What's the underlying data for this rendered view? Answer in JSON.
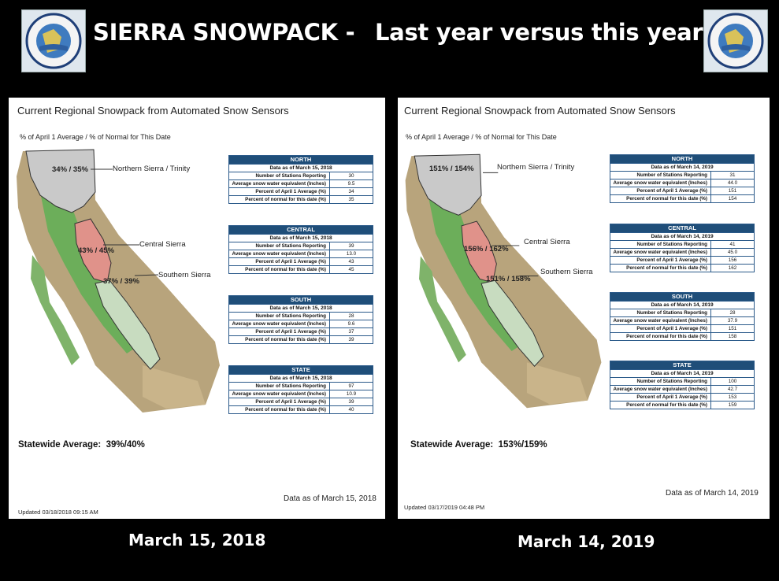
{
  "header": {
    "title_part1": "SIERRA SNOWPACK -",
    "title_part2": "Last year versus this year",
    "logo_text": "DEPARTMENT OF WATER RESOURCES · STATE OF CALIFORNIA"
  },
  "panels": [
    {
      "title": "Current Regional Snowpack from Automated Snow Sensors",
      "subtitle": "% of April 1 Average / % of Normal for This Date",
      "map_labels": {
        "north_value": "34% / 35%",
        "north_name": "Northern Sierra / Trinity",
        "central_value": "43% / 45%",
        "central_name": "Central Sierra",
        "south_value": "37% / 39%",
        "south_name": "Southern Sierra"
      },
      "tables": [
        {
          "region": "NORTH",
          "date": "Data as of March 15, 2018",
          "rows": [
            [
              "Number of Stations Reporting",
              "30"
            ],
            [
              "Average snow water equivalent (Inches)",
              "9.5"
            ],
            [
              "Percent of April 1 Average (%)",
              "34"
            ],
            [
              "Percent of normal for this date (%)",
              "35"
            ]
          ]
        },
        {
          "region": "CENTRAL",
          "date": "Data as of March 15, 2018",
          "rows": [
            [
              "Number of Stations Reporting",
              "39"
            ],
            [
              "Average snow water equivalent (Inches)",
              "13.0"
            ],
            [
              "Percent of April 1 Average (%)",
              "43"
            ],
            [
              "Percent of normal for this date (%)",
              "45"
            ]
          ]
        },
        {
          "region": "SOUTH",
          "date": "Data as of March 15, 2018",
          "rows": [
            [
              "Number of Stations Reporting",
              "28"
            ],
            [
              "Average snow water equivalent (Inches)",
              "9.6"
            ],
            [
              "Percent of April 1 Average (%)",
              "37"
            ],
            [
              "Percent of normal for this date (%)",
              "39"
            ]
          ]
        },
        {
          "region": "STATE",
          "date": "Data as of March 15, 2018",
          "rows": [
            [
              "Number of Stations Reporting",
              "97"
            ],
            [
              "Average snow water equivalent (Inches)",
              "10.9"
            ],
            [
              "Percent of April 1 Average (%)",
              "39"
            ],
            [
              "Percent of normal for this date (%)",
              "40"
            ]
          ]
        }
      ],
      "statewide": "Statewide Average:  39%/40%",
      "data_as_of": "Data as of March 15, 2018",
      "updated": "Updated 03/18/2018 09:15 AM",
      "caption": "March 15, 2018"
    },
    {
      "title": "Current Regional Snowpack from Automated Snow Sensors",
      "subtitle": "% of April 1 Average / % of Normal for This Date",
      "map_labels": {
        "north_value": "151% / 154%",
        "north_name": "Northern Sierra / Trinity",
        "central_value": "156% / 162%",
        "central_name": "Central Sierra",
        "south_value": "151% / 158%",
        "south_name": "Southern Sierra"
      },
      "tables": [
        {
          "region": "NORTH",
          "date": "Data as of March 14, 2019",
          "rows": [
            [
              "Number of Stations Reporting",
              "31"
            ],
            [
              "Average snow water equivalent (Inches)",
              "44.0"
            ],
            [
              "Percent of April 1 Average (%)",
              "151"
            ],
            [
              "Percent of normal for this date (%)",
              "154"
            ]
          ]
        },
        {
          "region": "CENTRAL",
          "date": "Data as of March 14, 2019",
          "rows": [
            [
              "Number of Stations Reporting",
              "41"
            ],
            [
              "Average snow water equivalent (Inches)",
              "45.0"
            ],
            [
              "Percent of April 1 Average (%)",
              "156"
            ],
            [
              "Percent of normal for this date (%)",
              "162"
            ]
          ]
        },
        {
          "region": "SOUTH",
          "date": "Data as of March 14, 2019",
          "rows": [
            [
              "Number of Stations Reporting",
              "28"
            ],
            [
              "Average snow water equivalent (Inches)",
              "37.9"
            ],
            [
              "Percent of April 1 Average (%)",
              "151"
            ],
            [
              "Percent of normal for this date (%)",
              "158"
            ]
          ]
        },
        {
          "region": "STATE",
          "date": "Data as of March 14, 2019",
          "rows": [
            [
              "Number of Stations Reporting",
              "100"
            ],
            [
              "Average snow water equivalent (Inches)",
              "42.7"
            ],
            [
              "Percent of April 1 Average (%)",
              "153"
            ],
            [
              "Percent of normal for this date (%)",
              "159"
            ]
          ]
        }
      ],
      "statewide": "Statewide Average:  153%/159%",
      "data_as_of": "Data as of March 14, 2019",
      "updated": "Updated 03/17/2019 04:48 PM",
      "caption": "March 14, 2019"
    }
  ],
  "colors": {
    "background": "#000000",
    "table_header": "#1f4e79",
    "north_region": "#c9c9c9",
    "central_region": "#e0928a",
    "south_region": "#c8dcc0",
    "valley": "#6cae5a"
  }
}
